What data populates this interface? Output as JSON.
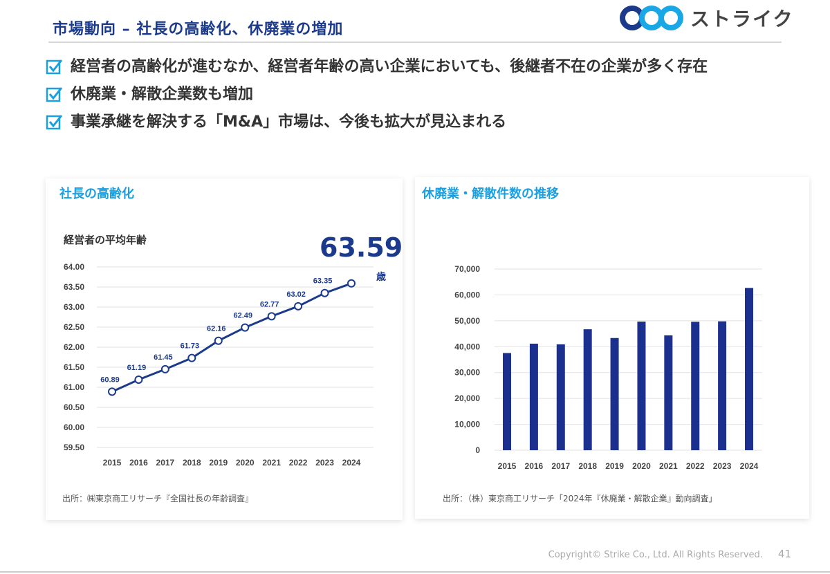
{
  "header": {
    "title": "市場動向 – 社長の高齢化、休廃業の増加",
    "logo_text": "ストライク"
  },
  "bullets": [
    "経営者の高齢化が進むなか、経営者年齢の高い企業においても、後継者不在の企業が多く存在",
    "休廃業・解散企業数も増加",
    "事業承継を解決する「M&A」市場は、今後も拡大が見込まれる"
  ],
  "colors": {
    "accent": "#1b3a8c",
    "sky": "#1a9fe0",
    "bar": "#1b2f8f"
  },
  "left_panel": {
    "title": "社長の高齢化",
    "subtitle": "経営者の平均年齢",
    "highlight": "63.59",
    "highlight_unit": "歳",
    "source": "出所：㈱東京商工リサーチ『全国社長の年齢調査』"
  },
  "right_panel": {
    "title": "休廃業・解散件数の推移",
    "source": "出所：（株）東京商工リサーチ「2024年『休廃業・解散企業』動向調査」"
  },
  "chart_data": [
    {
      "type": "line",
      "title": "経営者の平均年齢",
      "categories": [
        "2015",
        "2016",
        "2017",
        "2018",
        "2019",
        "2020",
        "2021",
        "2022",
        "2023",
        "2024"
      ],
      "values": [
        60.89,
        61.19,
        61.45,
        61.73,
        62.16,
        62.49,
        62.77,
        63.02,
        63.35,
        63.59
      ],
      "labels": [
        "60.89",
        "61.19",
        "61.45",
        "61.73",
        "62.16",
        "62.49",
        "62.77",
        "63.02",
        "63.35",
        ""
      ],
      "ylim": [
        59.5,
        64.0
      ],
      "yticks": [
        "64.00",
        "63.50",
        "63.00",
        "62.50",
        "62.00",
        "61.50",
        "61.00",
        "60.50",
        "60.00",
        "59.50"
      ],
      "grid": true
    },
    {
      "type": "bar",
      "title": "休廃業・解散件数の推移",
      "categories": [
        "2015",
        "2016",
        "2017",
        "2018",
        "2019",
        "2020",
        "2021",
        "2022",
        "2023",
        "2024"
      ],
      "values": [
        37548,
        41162,
        40909,
        46724,
        43348,
        49698,
        44377,
        49625,
        49788,
        62695
      ],
      "ylim": [
        0,
        70000
      ],
      "yticks": [
        "70,000",
        "60,000",
        "50,000",
        "40,000",
        "30,000",
        "20,000",
        "10,000",
        "0"
      ],
      "grid": true
    }
  ],
  "footer": {
    "copyright": "Copyright© Strike Co., Ltd. All Rights Reserved.",
    "page": "41"
  }
}
